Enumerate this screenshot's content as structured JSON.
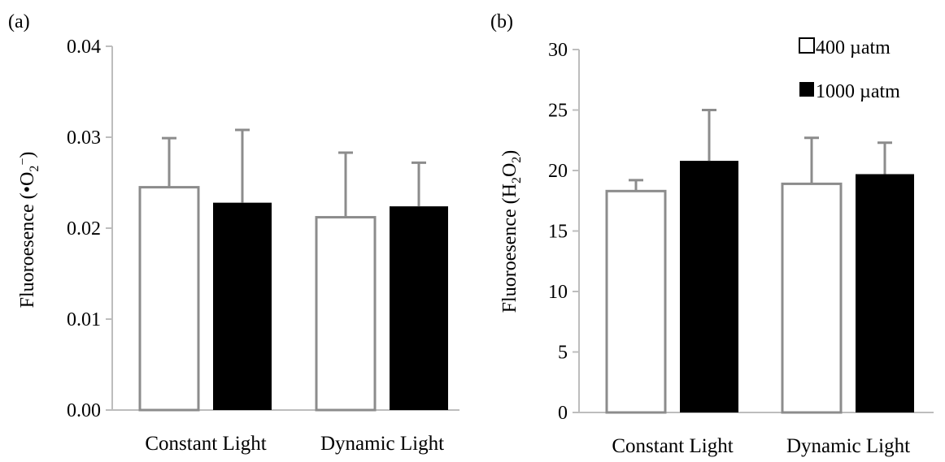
{
  "chart_data": [
    {
      "type": "bar",
      "panel_label": "(a)",
      "categories": [
        "Constant Light",
        "Dynamic Light"
      ],
      "ylabel_prefix": "Fluoroesence (•O",
      "ylabel_sub": "2",
      "ylabel_sup": "−",
      "ylabel_suffix": ")",
      "ylim": [
        0,
        0.04
      ],
      "yticks": [
        "0.00",
        "0.01",
        "0.02",
        "0.03",
        "0.04"
      ],
      "series": [
        {
          "values": [
            0.0245,
            0.0212
          ],
          "errors": [
            0.0054,
            0.0071
          ],
          "color": "#ffffff"
        },
        {
          "values": [
            0.0228,
            0.0224
          ],
          "errors": [
            0.008,
            0.0048
          ],
          "color": "#000000"
        }
      ]
    },
    {
      "type": "bar",
      "panel_label": "(b)",
      "categories": [
        "Constant Light",
        "Dynamic Light"
      ],
      "ylabel_prefix": "Fluoroesence (H",
      "ylabel_sub1": "2",
      "ylabel_mid": "O",
      "ylabel_sub2": "2",
      "ylabel_suffix": ")",
      "ylim": [
        0,
        30
      ],
      "yticks": [
        "0",
        "5",
        "10",
        "15",
        "20",
        "25",
        "30"
      ],
      "legend_position": "top-right",
      "series": [
        {
          "name": "400 µatm",
          "values": [
            18.3,
            18.9
          ],
          "errors": [
            0.9,
            3.8
          ],
          "color": "#ffffff"
        },
        {
          "name": "1000 µatm",
          "values": [
            20.8,
            19.7
          ],
          "errors": [
            4.2,
            2.6
          ],
          "color": "#000000"
        }
      ]
    }
  ]
}
